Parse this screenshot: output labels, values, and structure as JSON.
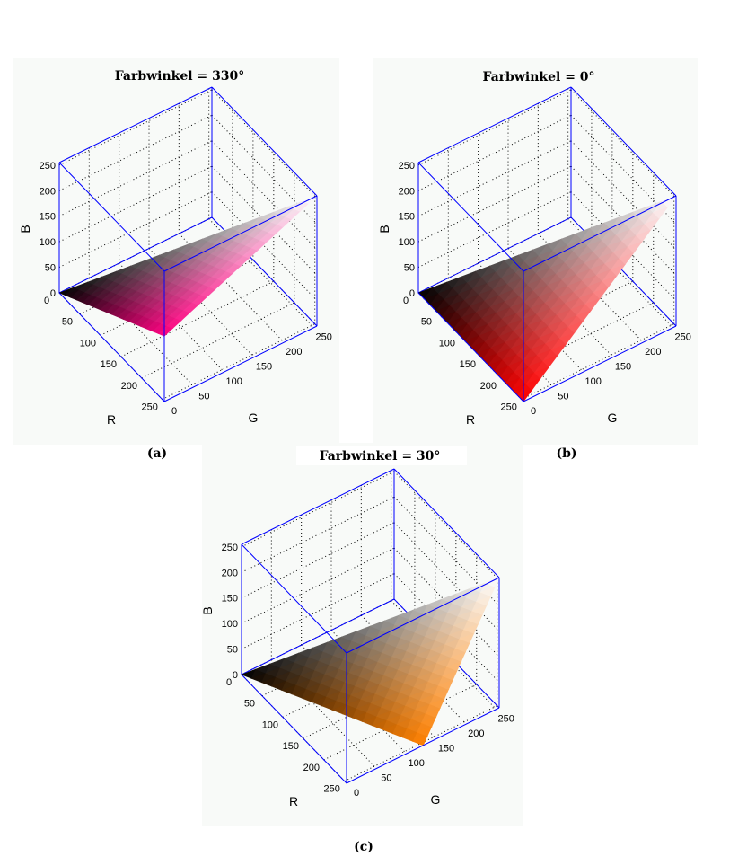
{
  "chart_data": [
    {
      "type": "surface3d",
      "panel": "(a)",
      "title": "Farbwinkel = 330°",
      "xlabel": "R",
      "ylabel": "G",
      "zlabel": "B",
      "xlim": [
        0,
        255
      ],
      "ylim": [
        0,
        255
      ],
      "zlim": [
        0,
        255
      ],
      "ticks": [
        "0",
        "50",
        "100",
        "150",
        "200",
        "250"
      ],
      "grid": true,
      "box_color": "#0000ff",
      "surface_vertices_rgb": [
        [
          0,
          0,
          0
        ],
        [
          255,
          255,
          255
        ],
        [
          255,
          0,
          128
        ]
      ]
    },
    {
      "type": "surface3d",
      "panel": "(b)",
      "title": "Farbwinkel = 0°",
      "xlabel": "R",
      "ylabel": "G",
      "zlabel": "B",
      "xlim": [
        0,
        255
      ],
      "ylim": [
        0,
        255
      ],
      "zlim": [
        0,
        255
      ],
      "ticks": [
        "0",
        "50",
        "100",
        "150",
        "200",
        "250"
      ],
      "grid": true,
      "box_color": "#0000ff",
      "surface_vertices_rgb": [
        [
          0,
          0,
          0
        ],
        [
          255,
          255,
          255
        ],
        [
          255,
          0,
          0
        ]
      ]
    },
    {
      "type": "surface3d",
      "panel": "(c)",
      "title": "Farbwinkel = 30°",
      "xlabel": "R",
      "ylabel": "G",
      "zlabel": "B",
      "xlim": [
        0,
        255
      ],
      "ylim": [
        0,
        255
      ],
      "zlim": [
        0,
        255
      ],
      "ticks": [
        "0",
        "50",
        "100",
        "150",
        "200",
        "250"
      ],
      "grid": true,
      "box_color": "#0000ff",
      "surface_vertices_rgb": [
        [
          0,
          0,
          0
        ],
        [
          255,
          255,
          255
        ],
        [
          255,
          128,
          0
        ]
      ]
    }
  ]
}
